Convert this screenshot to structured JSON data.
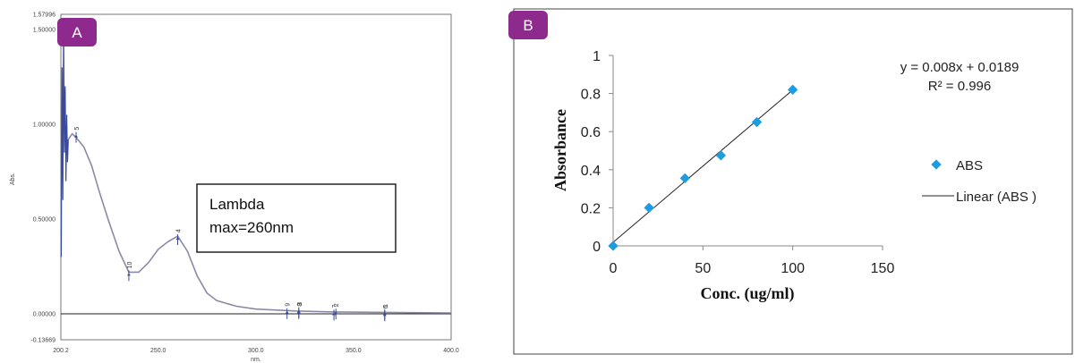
{
  "chart_data": [
    {
      "type": "line",
      "panel_label": "A",
      "ylabel": "Abs.",
      "xlabel": "nm.",
      "xlim": [
        200.2,
        400.0
      ],
      "ylim": [
        -0.13669,
        1.57996
      ],
      "x_tick_labels": [
        "200.2",
        "250.0",
        "300.0",
        "350.0",
        "400.0"
      ],
      "y_tick_labels": [
        "1.57996",
        "1.50000",
        "1.00000",
        "0.50000",
        "0.00000",
        "-0.13669"
      ],
      "annotation": {
        "line1": "Lambda",
        "line2": "max=260nm"
      },
      "x": [
        204,
        206,
        208,
        212,
        216,
        220,
        225,
        230,
        235,
        240,
        245,
        250,
        255,
        260,
        265,
        270,
        275,
        280,
        290,
        300,
        320,
        340,
        360,
        380,
        400
      ],
      "y": [
        0.92,
        0.95,
        0.93,
        0.88,
        0.78,
        0.64,
        0.48,
        0.33,
        0.22,
        0.22,
        0.27,
        0.34,
        0.38,
        0.41,
        0.33,
        0.2,
        0.11,
        0.07,
        0.04,
        0.025,
        0.015,
        0.01,
        0.008,
        0.006,
        0.005
      ],
      "peaks": [
        {
          "label": "5",
          "x": 208,
          "y": 0.95
        },
        {
          "label": "4",
          "x": 260,
          "y": 0.41
        },
        {
          "label": "10",
          "x": 235,
          "y": 0.22
        },
        {
          "label": "9",
          "x": 316,
          "y": 0.02
        },
        {
          "label": "3",
          "x": 322,
          "y": 0.025
        },
        {
          "label": "8",
          "x": 322,
          "y": 0.02
        },
        {
          "label": "2",
          "x": 341,
          "y": 0.018
        },
        {
          "label": "7",
          "x": 340,
          "y": 0.012
        },
        {
          "label": "1",
          "x": 366,
          "y": 0.015
        },
        {
          "label": "6",
          "x": 366,
          "y": 0.008
        }
      ],
      "line_color": "#8a8aa6",
      "noise_color": "#3a4a9a"
    },
    {
      "type": "scatter",
      "panel_label": "B",
      "xlabel": "Conc. (ug/ml)",
      "ylabel": "Absorbance",
      "xlim": [
        0,
        150
      ],
      "ylim": [
        0,
        1
      ],
      "x_ticks": [
        0,
        50,
        100,
        150
      ],
      "y_ticks": [
        0,
        0.2,
        0.4,
        0.6,
        0.8,
        1
      ],
      "series": [
        {
          "name": "ABS",
          "x": [
            0,
            20,
            40,
            60,
            80,
            100
          ],
          "values": [
            0,
            0.2,
            0.355,
            0.475,
            0.65,
            0.82
          ],
          "color": "#1f9be0"
        }
      ],
      "trendline": {
        "name": "Linear (ABS )",
        "slope": 0.008,
        "intercept": 0.0189,
        "color": "#222222"
      },
      "equation": "y = 0.008x + 0.0189",
      "r_squared": "R² = 0.996"
    }
  ],
  "badge_color": "#8e2a8e"
}
